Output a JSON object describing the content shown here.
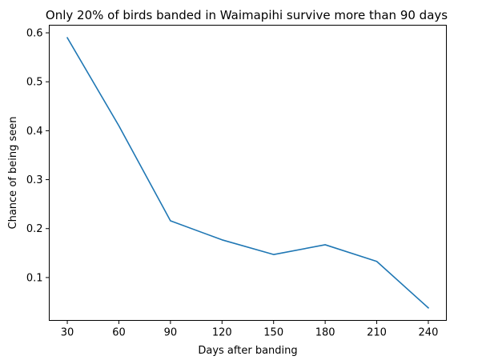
{
  "chart_data": {
    "type": "line",
    "title": "Only 20% of birds banded in Waimapihi survive more than 90 days",
    "xlabel": "Days after banding",
    "ylabel": "Chance of being seen",
    "x": [
      30,
      60,
      90,
      120,
      150,
      180,
      210,
      240
    ],
    "series": [
      {
        "values": [
          0.59,
          0.41,
          0.216,
          0.177,
          0.147,
          0.167,
          0.133,
          0.038
        ],
        "color": "#1f77b4"
      }
    ],
    "xticks": [
      30,
      60,
      90,
      120,
      150,
      180,
      210,
      240
    ],
    "xtick_labels": [
      "30",
      "60",
      "90",
      "120",
      "150",
      "180",
      "210",
      "240"
    ],
    "yticks": [
      0.1,
      0.2,
      0.3,
      0.4,
      0.5,
      0.6
    ],
    "ytick_labels": [
      "0.1",
      "0.2",
      "0.3",
      "0.4",
      "0.5",
      "0.6"
    ],
    "xlim": [
      19.5,
      250.5
    ],
    "ylim": [
      0.0124,
      0.6156
    ],
    "grid": false
  }
}
